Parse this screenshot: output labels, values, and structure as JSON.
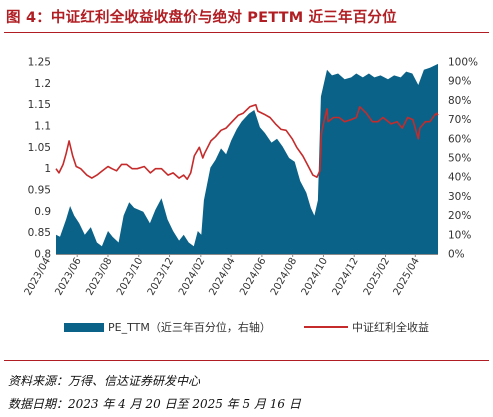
{
  "title": "图 4：中证红利全收益收盘价与绝对 PETTM 近三年百分位",
  "source_note": "资料来源：万得、信达证券研发中心",
  "date_note": "数据日期：2023 年 4 月 20 日至 2025 年 5 月 16 日",
  "colors": {
    "area": "#0a6288",
    "line": "#c62b2b",
    "accent": "#b01e23"
  },
  "chart_data": {
    "type": "area+line",
    "x_start": "2023-04-20",
    "x_end": "2025-05-16",
    "x_tick_labels": [
      "2023/04",
      "2023/06",
      "2023/08",
      "2023/10",
      "2023/12",
      "2024/02",
      "2024/04",
      "2024/06",
      "2024/08",
      "2024/10",
      "2024/12",
      "2025/02",
      "2025/04"
    ],
    "y_left_ticks": [
      "0.8",
      "0.85",
      "0.9",
      "0.95",
      "1",
      "1.05",
      "1.1",
      "1.15",
      "1.2",
      "1.25"
    ],
    "y_left_range": [
      0.8,
      1.25
    ],
    "y_right_ticks": [
      "0%",
      "10%",
      "20%",
      "30%",
      "40%",
      "50%",
      "60%",
      "70%",
      "80%",
      "90%",
      "100%"
    ],
    "y_right_range": [
      0,
      100
    ],
    "series": [
      {
        "name": "PE_TTM（近三年百分位，右轴）",
        "axis": "right",
        "type": "area",
        "points": [
          [
            "2023-04-20",
            10
          ],
          [
            "2023-04-28",
            9
          ],
          [
            "2023-05-10",
            18
          ],
          [
            "2023-05-18",
            25
          ],
          [
            "2023-05-26",
            20
          ],
          [
            "2023-06-05",
            16
          ],
          [
            "2023-06-16",
            10
          ],
          [
            "2023-06-28",
            14
          ],
          [
            "2023-07-10",
            6
          ],
          [
            "2023-07-20",
            4
          ],
          [
            "2023-08-01",
            12
          ],
          [
            "2023-08-10",
            9
          ],
          [
            "2023-08-22",
            6
          ],
          [
            "2023-09-01",
            20
          ],
          [
            "2023-09-12",
            27
          ],
          [
            "2023-09-22",
            24
          ],
          [
            "2023-10-10",
            22
          ],
          [
            "2023-10-23",
            16
          ],
          [
            "2023-11-03",
            23
          ],
          [
            "2023-11-15",
            29
          ],
          [
            "2023-11-27",
            18
          ],
          [
            "2023-12-08",
            12
          ],
          [
            "2023-12-20",
            7
          ],
          [
            "2023-12-29",
            10
          ],
          [
            "2024-01-08",
            6
          ],
          [
            "2024-01-18",
            4
          ],
          [
            "2024-01-26",
            12
          ],
          [
            "2024-02-02",
            10
          ],
          [
            "2024-02-07",
            28
          ],
          [
            "2024-02-20",
            45
          ],
          [
            "2024-03-01",
            49
          ],
          [
            "2024-03-12",
            55
          ],
          [
            "2024-03-22",
            52
          ],
          [
            "2024-04-01",
            59
          ],
          [
            "2024-04-12",
            65
          ],
          [
            "2024-04-22",
            69
          ],
          [
            "2024-05-06",
            73
          ],
          [
            "2024-05-17",
            75
          ],
          [
            "2024-05-28",
            66
          ],
          [
            "2024-06-07",
            63
          ],
          [
            "2024-06-20",
            58
          ],
          [
            "2024-07-01",
            60
          ],
          [
            "2024-07-12",
            56
          ],
          [
            "2024-07-25",
            50
          ],
          [
            "2024-08-05",
            48
          ],
          [
            "2024-08-16",
            38
          ],
          [
            "2024-08-28",
            32
          ],
          [
            "2024-09-06",
            24
          ],
          [
            "2024-09-13",
            20
          ],
          [
            "2024-09-20",
            28
          ],
          [
            "2024-09-26",
            82
          ],
          [
            "2024-10-08",
            96
          ],
          [
            "2024-10-18",
            93
          ],
          [
            "2024-10-30",
            94
          ],
          [
            "2024-11-12",
            91
          ],
          [
            "2024-11-25",
            92
          ],
          [
            "2024-12-05",
            94
          ],
          [
            "2024-12-18",
            92
          ],
          [
            "2024-12-30",
            94
          ],
          [
            "2025-01-10",
            92
          ],
          [
            "2025-01-22",
            93
          ],
          [
            "2025-02-06",
            91
          ],
          [
            "2025-02-18",
            93
          ],
          [
            "2025-03-03",
            92
          ],
          [
            "2025-03-14",
            95
          ],
          [
            "2025-03-26",
            94
          ],
          [
            "2025-04-07",
            88
          ],
          [
            "2025-04-18",
            96
          ],
          [
            "2025-04-30",
            97
          ],
          [
            "2025-05-16",
            99
          ]
        ]
      },
      {
        "name": "中证红利全收益",
        "axis": "left",
        "type": "line",
        "points": [
          [
            "2023-04-20",
            1.0
          ],
          [
            "2023-04-26",
            0.99
          ],
          [
            "2023-05-04",
            1.01
          ],
          [
            "2023-05-10",
            1.035
          ],
          [
            "2023-05-16",
            1.065
          ],
          [
            "2023-05-23",
            1.03
          ],
          [
            "2023-05-30",
            1.005
          ],
          [
            "2023-06-08",
            1.0
          ],
          [
            "2023-06-20",
            0.985
          ],
          [
            "2023-06-30",
            0.978
          ],
          [
            "2023-07-10",
            0.985
          ],
          [
            "2023-07-21",
            0.995
          ],
          [
            "2023-08-01",
            1.005
          ],
          [
            "2023-08-09",
            1.0
          ],
          [
            "2023-08-18",
            0.995
          ],
          [
            "2023-08-28",
            1.01
          ],
          [
            "2023-09-07",
            1.01
          ],
          [
            "2023-09-18",
            1.0
          ],
          [
            "2023-09-28",
            1.0
          ],
          [
            "2023-10-12",
            1.005
          ],
          [
            "2023-10-24",
            0.99
          ],
          [
            "2023-11-03",
            1.0
          ],
          [
            "2023-11-15",
            1.0
          ],
          [
            "2023-11-28",
            0.985
          ],
          [
            "2023-12-08",
            0.99
          ],
          [
            "2023-12-20",
            0.978
          ],
          [
            "2023-12-29",
            0.985
          ],
          [
            "2024-01-05",
            0.975
          ],
          [
            "2024-01-12",
            0.99
          ],
          [
            "2024-01-19",
            1.03
          ],
          [
            "2024-01-29",
            1.05
          ],
          [
            "2024-02-05",
            1.025
          ],
          [
            "2024-02-08",
            1.035
          ],
          [
            "2024-02-21",
            1.065
          ],
          [
            "2024-03-01",
            1.075
          ],
          [
            "2024-03-12",
            1.09
          ],
          [
            "2024-03-22",
            1.095
          ],
          [
            "2024-04-03",
            1.11
          ],
          [
            "2024-04-15",
            1.125
          ],
          [
            "2024-04-25",
            1.13
          ],
          [
            "2024-05-08",
            1.145
          ],
          [
            "2024-05-20",
            1.15
          ],
          [
            "2024-05-24",
            1.135
          ],
          [
            "2024-06-05",
            1.128
          ],
          [
            "2024-06-17",
            1.12
          ],
          [
            "2024-06-28",
            1.105
          ],
          [
            "2024-07-09",
            1.092
          ],
          [
            "2024-07-19",
            1.09
          ],
          [
            "2024-07-31",
            1.07
          ],
          [
            "2024-08-09",
            1.05
          ],
          [
            "2024-08-21",
            1.03
          ],
          [
            "2024-08-30",
            1.01
          ],
          [
            "2024-09-10",
            0.985
          ],
          [
            "2024-09-18",
            0.98
          ],
          [
            "2024-09-24",
            0.995
          ],
          [
            "2024-09-27",
            1.08
          ],
          [
            "2024-09-30",
            1.1
          ],
          [
            "2024-10-08",
            1.14
          ],
          [
            "2024-10-10",
            1.11
          ],
          [
            "2024-10-21",
            1.12
          ],
          [
            "2024-11-01",
            1.12
          ],
          [
            "2024-11-12",
            1.11
          ],
          [
            "2024-11-25",
            1.115
          ],
          [
            "2024-12-05",
            1.12
          ],
          [
            "2024-12-12",
            1.145
          ],
          [
            "2024-12-25",
            1.13
          ],
          [
            "2025-01-06",
            1.11
          ],
          [
            "2025-01-17",
            1.11
          ],
          [
            "2025-01-27",
            1.12
          ],
          [
            "2025-02-12",
            1.105
          ],
          [
            "2025-02-24",
            1.11
          ],
          [
            "2025-03-06",
            1.095
          ],
          [
            "2025-03-17",
            1.12
          ],
          [
            "2025-03-27",
            1.115
          ],
          [
            "2025-04-07",
            1.07
          ],
          [
            "2025-04-10",
            1.095
          ],
          [
            "2025-04-21",
            1.11
          ],
          [
            "2025-04-30",
            1.11
          ],
          [
            "2025-05-09",
            1.125
          ],
          [
            "2025-05-13",
            1.13
          ],
          [
            "2025-05-16",
            1.125
          ]
        ]
      }
    ],
    "legend_position": "bottom"
  }
}
